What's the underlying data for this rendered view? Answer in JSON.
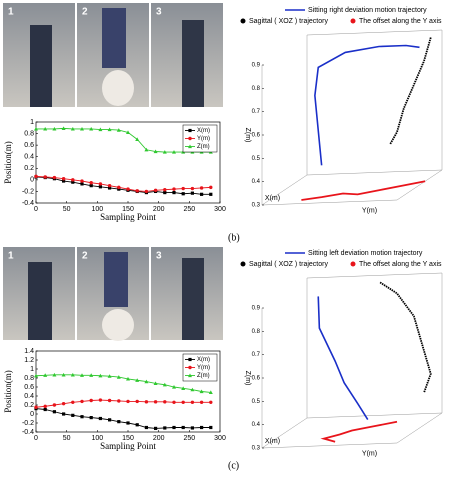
{
  "panels": [
    {
      "label": "(b)",
      "photos": [
        "1",
        "2",
        "3"
      ]
    },
    {
      "label": "(c)",
      "photos": [
        "1",
        "2",
        "3"
      ]
    }
  ],
  "chart_data": [
    {
      "type": "line",
      "xlabel": "Sampling Point",
      "ylabel": "Position(m)",
      "x": [
        0,
        15,
        30,
        45,
        60,
        75,
        90,
        105,
        120,
        135,
        150,
        165,
        180,
        195,
        210,
        225,
        240,
        255,
        270,
        285
      ],
      "xlim": [
        0,
        300
      ],
      "xticks": [
        0,
        50,
        100,
        150,
        200,
        250,
        300
      ],
      "ylim": [
        -0.4,
        1.0
      ],
      "yticks": [
        1,
        0.8,
        0.6,
        0.4,
        0.2,
        0,
        -0.2,
        -0.4
      ],
      "legend": "upper right",
      "series": [
        {
          "name": "X(m)",
          "color": "#000000",
          "marker": "square",
          "values": [
            0.05,
            0.04,
            0.02,
            -0.02,
            -0.04,
            -0.07,
            -0.1,
            -0.12,
            -0.14,
            -0.16,
            -0.18,
            -0.2,
            -0.22,
            -0.2,
            -0.22,
            -0.22,
            -0.24,
            -0.23,
            -0.25,
            -0.25
          ]
        },
        {
          "name": "Y(m)",
          "color": "#e8141b",
          "marker": "circle",
          "values": [
            0.06,
            0.05,
            0.04,
            0.02,
            0.0,
            -0.02,
            -0.05,
            -0.07,
            -0.1,
            -0.13,
            -0.16,
            -0.19,
            -0.2,
            -0.18,
            -0.17,
            -0.16,
            -0.15,
            -0.15,
            -0.14,
            -0.13
          ]
        },
        {
          "name": "Z(m)",
          "color": "#2fc82f",
          "marker": "triangle",
          "values": [
            0.88,
            0.88,
            0.88,
            0.89,
            0.88,
            0.88,
            0.88,
            0.87,
            0.87,
            0.86,
            0.82,
            0.7,
            0.52,
            0.49,
            0.48,
            0.48,
            0.48,
            0.48,
            0.48,
            0.48
          ]
        }
      ]
    },
    {
      "type": "line3d",
      "xlabel": "X(m)",
      "ylabel": "Y(m)",
      "zlabel": "Z(m)",
      "xlim": [
        -0.3,
        0.1
      ],
      "ylim": [
        -0.3,
        0.1
      ],
      "zlim": [
        0.3,
        0.9
      ],
      "zticks": [
        0.3,
        0.4,
        0.5,
        0.6,
        0.7,
        0.8,
        0.9
      ],
      "series": [
        {
          "name": "Sitting right deviation motion trajectory",
          "color": "#1a2fc8",
          "x": [
            -0.1,
            -0.1,
            -0.1,
            -0.1,
            -0.1,
            -0.1,
            -0.1,
            -0.1
          ],
          "y": [
            -0.19,
            -0.2,
            -0.21,
            -0.2,
            -0.12,
            -0.02,
            0.06,
            0.1
          ],
          "z": [
            0.4,
            0.55,
            0.7,
            0.82,
            0.88,
            0.9,
            0.9,
            0.89
          ]
        },
        {
          "name": "Sagittal ( XOZ ) trajectory",
          "color": "#000000",
          "x": [
            0,
            0,
            0,
            0,
            0,
            0
          ],
          "y": [
            0.1,
            0.08,
            0.05,
            0.02,
            0.0,
            -0.02
          ],
          "z": [
            0.9,
            0.8,
            0.7,
            0.6,
            0.5,
            0.45
          ]
        },
        {
          "name": "The offset along the Y axis",
          "color": "#e8141b",
          "x": [
            -0.25,
            -0.22,
            -0.18,
            -0.2,
            -0.15,
            -0.1,
            -0.05
          ],
          "y": [
            -0.2,
            -0.15,
            -0.1,
            -0.05,
            0,
            0.05,
            0.1
          ],
          "z": [
            0.3,
            0.3,
            0.3,
            0.3,
            0.3,
            0.3,
            0.3
          ]
        }
      ]
    },
    {
      "type": "line",
      "xlabel": "Sampling Point",
      "ylabel": "Position(m)",
      "x": [
        0,
        15,
        30,
        45,
        60,
        75,
        90,
        105,
        120,
        135,
        150,
        165,
        180,
        195,
        210,
        225,
        240,
        255,
        270,
        285
      ],
      "xlim": [
        0,
        300
      ],
      "xticks": [
        0,
        50,
        100,
        150,
        200,
        250,
        300
      ],
      "ylim": [
        -0.4,
        1.4
      ],
      "yticks": [
        1.4,
        1.2,
        1,
        0.8,
        0.6,
        0.4,
        0.2,
        0,
        -0.2,
        -0.4
      ],
      "legend": "upper right",
      "series": [
        {
          "name": "X(m)",
          "color": "#000000",
          "marker": "square",
          "values": [
            0.12,
            0.1,
            0.05,
            0.0,
            -0.03,
            -0.06,
            -0.08,
            -0.1,
            -0.13,
            -0.17,
            -0.2,
            -0.24,
            -0.3,
            -0.32,
            -0.31,
            -0.3,
            -0.3,
            -0.31,
            -0.3,
            -0.3
          ]
        },
        {
          "name": "Y(m)",
          "color": "#e8141b",
          "marker": "circle",
          "values": [
            0.15,
            0.17,
            0.2,
            0.23,
            0.26,
            0.28,
            0.3,
            0.31,
            0.3,
            0.29,
            0.28,
            0.28,
            0.27,
            0.27,
            0.27,
            0.26,
            0.26,
            0.26,
            0.26,
            0.26
          ]
        },
        {
          "name": "Z(m)",
          "color": "#2fc82f",
          "marker": "triangle",
          "values": [
            0.85,
            0.86,
            0.87,
            0.87,
            0.87,
            0.86,
            0.86,
            0.85,
            0.84,
            0.82,
            0.78,
            0.75,
            0.72,
            0.68,
            0.65,
            0.6,
            0.57,
            0.54,
            0.5,
            0.48
          ]
        }
      ]
    },
    {
      "type": "line3d",
      "xlabel": "X(m)",
      "ylabel": "Y(m)",
      "zlabel": "Z(m)",
      "xlim": [
        -0.3,
        0.1
      ],
      "ylim": [
        -0.3,
        0.1
      ],
      "zlim": [
        0.3,
        0.9
      ],
      "zticks": [
        0.3,
        0.4,
        0.5,
        0.6,
        0.7,
        0.8,
        0.9
      ],
      "series": [
        {
          "name": "Sitting left deviation motion trajectory",
          "color": "#1a2fc8",
          "x": [
            -0.1,
            -0.12,
            -0.1,
            -0.08,
            -0.05,
            -0.02
          ],
          "y": [
            -0.2,
            -0.19,
            -0.15,
            -0.13,
            -0.1,
            -0.08
          ],
          "z": [
            0.88,
            0.75,
            0.6,
            0.5,
            0.4,
            0.32
          ]
        },
        {
          "name": "Sagittal ( XOZ ) trajectory",
          "color": "#000000",
          "x": [
            0,
            0,
            0,
            0,
            0,
            0
          ],
          "y": [
            -0.05,
            0.0,
            0.05,
            0.08,
            0.1,
            0.08
          ],
          "z": [
            0.9,
            0.85,
            0.75,
            0.6,
            0.5,
            0.42
          ]
        },
        {
          "name": "The offset along the Y axis",
          "color": "#e8141b",
          "x": [
            -0.25,
            -0.2,
            -0.15,
            -0.1,
            -0.05,
            0
          ],
          "y": [
            -0.1,
            -0.15,
            -0.12,
            -0.1,
            -0.05,
            0.0
          ],
          "z": [
            0.3,
            0.3,
            0.3,
            0.3,
            0.3,
            0.3
          ]
        }
      ]
    }
  ]
}
